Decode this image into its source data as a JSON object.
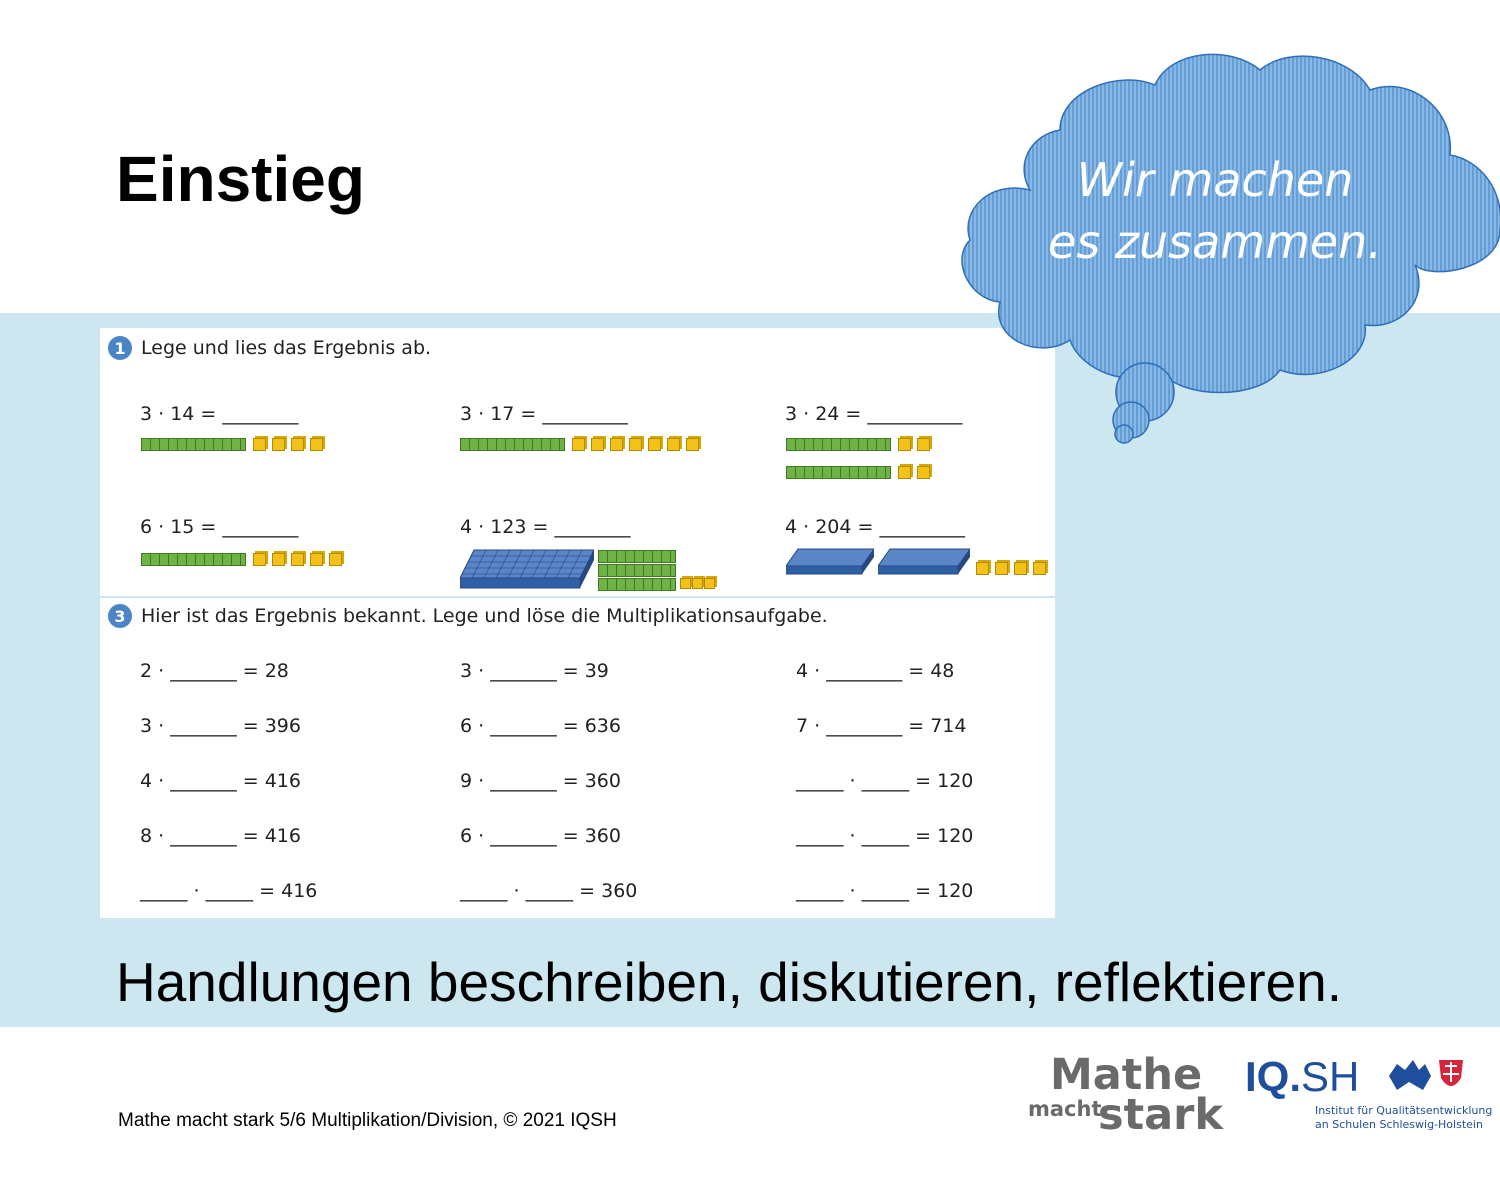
{
  "slide": {
    "title": "Einstieg",
    "cloud_line1": "Wir machen",
    "cloud_line2": "es zusammen.",
    "subtitle": "Handlungen beschreiben, diskutieren, reflektieren.",
    "footer": "Mathe macht stark 5/6 Multiplikation/Division, © 2021 IQSH"
  },
  "task1": {
    "number": "1",
    "instruction": "Lege und lies das Ergebnis ab.",
    "equations": [
      "3 · 14 = ________",
      "3 · 17 = _________",
      "3 · 24 = __________",
      "6 · 15 = ________",
      "4 · 123 = ________",
      "4 · 204 = _________"
    ]
  },
  "task3": {
    "number": "3",
    "instruction": "Hier ist das Ergebnis bekannt. Lege und löse die Multiplikationsaufgabe.",
    "rows": [
      [
        "2 · _______ = 28",
        "3 · _______ = 39",
        "4 · ________ = 48"
      ],
      [
        "3 · _______ = 396",
        "6 · _______ = 636",
        "7 · ________ = 714"
      ],
      [
        "4 · _______ = 416",
        "9 · _______ = 360",
        "_____ · _____ = 120"
      ],
      [
        "8 · _______ = 416",
        "6 · _______ = 360",
        "_____ · _____ = 120"
      ],
      [
        "_____ · _____ = 416",
        "_____ · _____ = 360",
        "_____ · _____ = 120"
      ]
    ]
  },
  "logos": {
    "mathe": "Mathe",
    "macht": "macht",
    "stark": "stark",
    "iq": "IQ.",
    "sh": "SH",
    "institute_line1": "Institut für Qualitätsentwicklung",
    "institute_line2": "an Schulen Schleswig-Holstein"
  },
  "icons": [
    "cloud-icon",
    "crest-icon"
  ],
  "colors": {
    "band": "#cce7ef",
    "cloud": "#5a9bd5",
    "badge": "#4a86c5",
    "rod": "#6fb347",
    "cube": "#f2c21a",
    "plate": "#3f6fb3",
    "logo_blue": "#1f4f9c"
  }
}
